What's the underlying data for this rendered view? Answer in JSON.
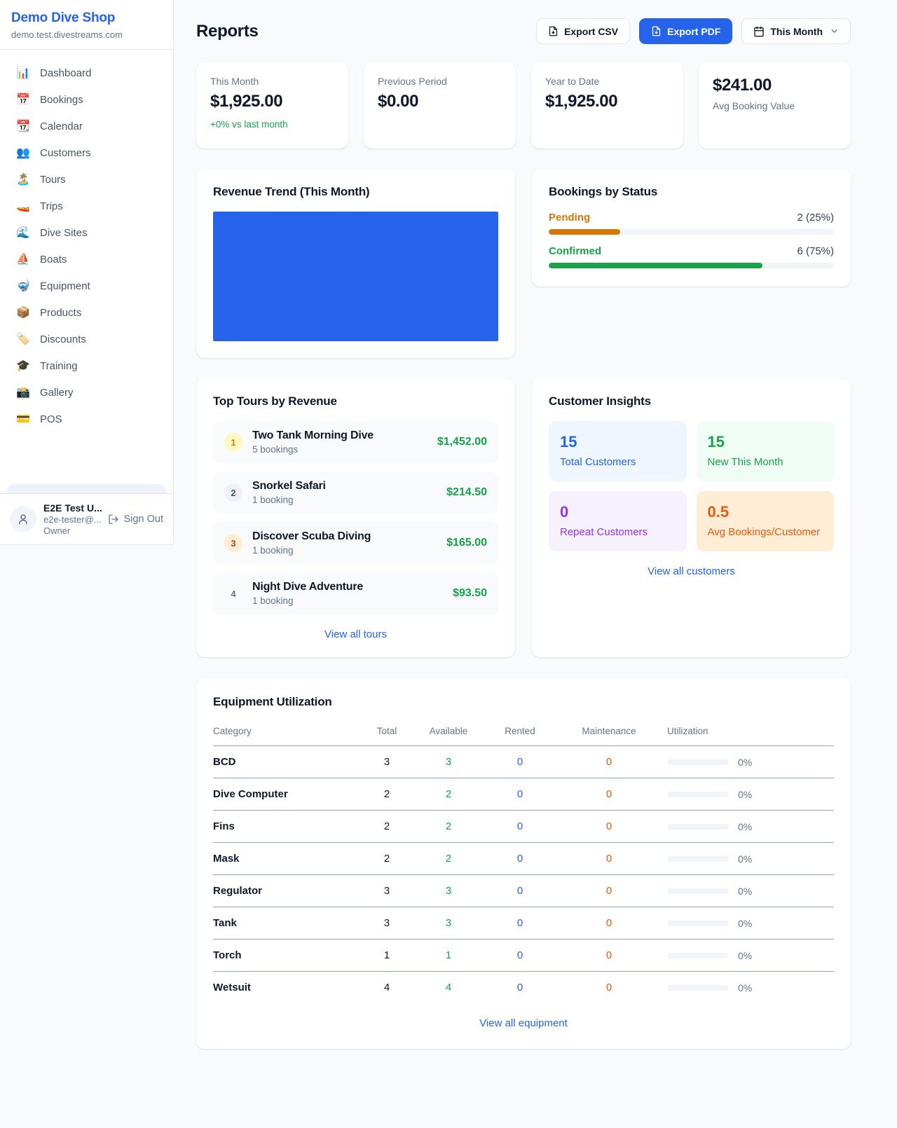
{
  "colors": {
    "accent": "#2563eb",
    "success": "#16a34a",
    "pending": "#d97706",
    "maintenance": "#ea580c",
    "purple": "#9333ea"
  },
  "sidebar": {
    "brand": {
      "name": "Demo Dive Shop",
      "domain": "demo.test.divestreams.com"
    },
    "items": [
      {
        "label": "Dashboard",
        "icon": "📊",
        "icon_name": "dashboard-icon"
      },
      {
        "label": "Bookings",
        "icon": "📅",
        "icon_name": "bookings-icon"
      },
      {
        "label": "Calendar",
        "icon": "📆",
        "icon_name": "calendar-icon"
      },
      {
        "label": "Customers",
        "icon": "👥",
        "icon_name": "customers-icon"
      },
      {
        "label": "Tours",
        "icon": "🏝️",
        "icon_name": "tours-icon"
      },
      {
        "label": "Trips",
        "icon": "🚤",
        "icon_name": "trips-icon"
      },
      {
        "label": "Dive Sites",
        "icon": "🌊",
        "icon_name": "dive-sites-icon"
      },
      {
        "label": "Boats",
        "icon": "⛵",
        "icon_name": "boats-icon"
      },
      {
        "label": "Equipment",
        "icon": "🤿",
        "icon_name": "equipment-icon"
      },
      {
        "label": "Products",
        "icon": "📦",
        "icon_name": "products-icon"
      },
      {
        "label": "Discounts",
        "icon": "🏷️",
        "icon_name": "discounts-icon"
      },
      {
        "label": "Training",
        "icon": "🎓",
        "icon_name": "training-icon"
      },
      {
        "label": "Gallery",
        "icon": "📸",
        "icon_name": "gallery-icon"
      },
      {
        "label": "POS",
        "icon": "💳",
        "icon_name": "pos-icon"
      }
    ],
    "user": {
      "name": "E2E Test U...",
      "email": "e2e-tester@...",
      "role": "Owner",
      "sign_out": "Sign Out"
    }
  },
  "header": {
    "title": "Reports",
    "export_csv": "Export CSV",
    "export_pdf": "Export PDF",
    "period": "This Month"
  },
  "stats": {
    "this_month": {
      "label": "This Month",
      "value": "$1,925.00",
      "delta": "+0% vs last month"
    },
    "previous_period": {
      "label": "Previous Period",
      "value": "$0.00"
    },
    "year_to_date": {
      "label": "Year to Date",
      "value": "$1,925.00"
    },
    "avg_booking": {
      "value": "$241.00",
      "label": "Avg Booking Value"
    }
  },
  "revenue_trend": {
    "title": "Revenue Trend (This Month)"
  },
  "chart_data": [
    {
      "type": "bar",
      "title": "Revenue Trend (This Month)",
      "categories": [
        "This Month"
      ],
      "values": [
        1925
      ],
      "color": "#2563eb",
      "note": "single full-width bar fills plot area"
    },
    {
      "type": "bar",
      "title": "Bookings by Status",
      "categories": [
        "Pending",
        "Confirmed"
      ],
      "values": [
        2,
        6
      ],
      "percentages": [
        25,
        75
      ]
    }
  ],
  "bookings_by_status": {
    "title": "Bookings by Status",
    "rows": [
      {
        "label": "Pending",
        "value": "2 (25%)",
        "pct": 25,
        "color": "#d97706"
      },
      {
        "label": "Confirmed",
        "value": "6 (75%)",
        "pct": 75,
        "color": "#16a34a"
      }
    ]
  },
  "top_tours": {
    "title": "Top Tours by Revenue",
    "link": "View all tours",
    "rows": [
      {
        "rank": "1",
        "name": "Two Tank Morning Dive",
        "bookings": "5 bookings",
        "revenue": "$1,452.00"
      },
      {
        "rank": "2",
        "name": "Snorkel Safari",
        "bookings": "1 booking",
        "revenue": "$214.50"
      },
      {
        "rank": "3",
        "name": "Discover Scuba Diving",
        "bookings": "1 booking",
        "revenue": "$165.00"
      },
      {
        "rank": "4",
        "name": "Night Dive Adventure",
        "bookings": "1 booking",
        "revenue": "$93.50"
      }
    ]
  },
  "customer_insights": {
    "title": "Customer Insights",
    "link": "View all customers",
    "tiles": [
      {
        "value": "15",
        "label": "Total Customers",
        "theme": "blue"
      },
      {
        "value": "15",
        "label": "New This Month",
        "theme": "green"
      },
      {
        "value": "0",
        "label": "Repeat Customers",
        "theme": "purple"
      },
      {
        "value": "0.5",
        "label": "Avg Bookings/Customer",
        "theme": "orange"
      }
    ]
  },
  "equipment": {
    "title": "Equipment Utilization",
    "link": "View all equipment",
    "columns": [
      "Category",
      "Total",
      "Available",
      "Rented",
      "Maintenance",
      "Utilization"
    ],
    "rows": [
      {
        "category": "BCD",
        "total": "3",
        "available": "3",
        "rented": "0",
        "maintenance": "0",
        "utilization": "0%",
        "utilization_pct": 0
      },
      {
        "category": "Dive Computer",
        "total": "2",
        "available": "2",
        "rented": "0",
        "maintenance": "0",
        "utilization": "0%",
        "utilization_pct": 0
      },
      {
        "category": "Fins",
        "total": "2",
        "available": "2",
        "rented": "0",
        "maintenance": "0",
        "utilization": "0%",
        "utilization_pct": 0
      },
      {
        "category": "Mask",
        "total": "2",
        "available": "2",
        "rented": "0",
        "maintenance": "0",
        "utilization": "0%",
        "utilization_pct": 0
      },
      {
        "category": "Regulator",
        "total": "3",
        "available": "3",
        "rented": "0",
        "maintenance": "0",
        "utilization": "0%",
        "utilization_pct": 0
      },
      {
        "category": "Tank",
        "total": "3",
        "available": "3",
        "rented": "0",
        "maintenance": "0",
        "utilization": "0%",
        "utilization_pct": 0
      },
      {
        "category": "Torch",
        "total": "1",
        "available": "1",
        "rented": "0",
        "maintenance": "0",
        "utilization": "0%",
        "utilization_pct": 0
      },
      {
        "category": "Wetsuit",
        "total": "4",
        "available": "4",
        "rented": "0",
        "maintenance": "0",
        "utilization": "0%",
        "utilization_pct": 0
      }
    ]
  }
}
